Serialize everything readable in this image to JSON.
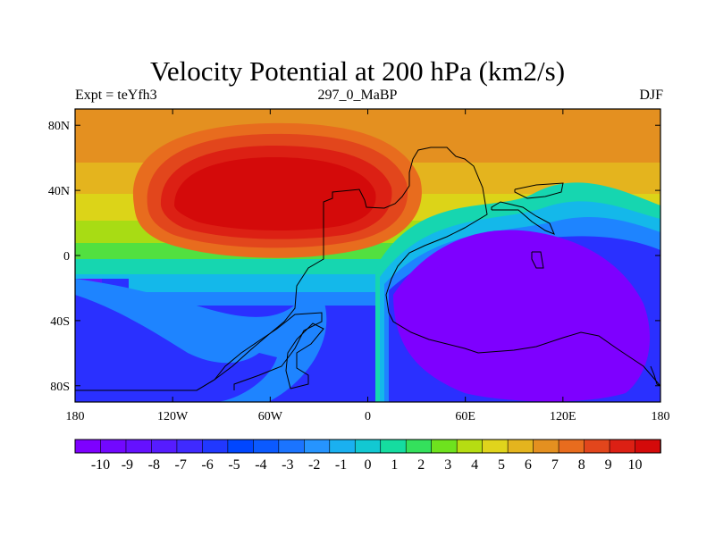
{
  "title": "Velocity Potential at 200 hPa (km2/s)",
  "left_label": "Expt = teYfh3",
  "center_label": "297_0_MaBP",
  "right_label": "DJF",
  "map_data": {
    "x_ticks": [
      "180",
      "120W",
      "60W",
      "0",
      "60E",
      "120E",
      "180"
    ],
    "y_ticks": [
      "80N",
      "40N",
      "0",
      "40S",
      "80S"
    ],
    "colorbar_labels": [
      "-10",
      "-9",
      "-8",
      "-7",
      "-6",
      "-5",
      "-4",
      "-3",
      "-2",
      "-1",
      "0",
      "1",
      "2",
      "3",
      "4",
      "5",
      "6",
      "7",
      "8",
      "9",
      "10"
    ],
    "colors": [
      "#7e00ff",
      "#7208ff",
      "#6511ff",
      "#561cff",
      "#3f2aff",
      "#2138ff",
      "#0046ff",
      "#0b5aff",
      "#1b74ff",
      "#2694ff",
      "#1ab0f0",
      "#12c8d2",
      "#15dca0",
      "#34e05c",
      "#6ee21e",
      "#b6dd12",
      "#e0d41c",
      "#e4b41e",
      "#e49020",
      "#e86c1e",
      "#e2461c",
      "#dc2014",
      "#d40a0a"
    ]
  }
}
